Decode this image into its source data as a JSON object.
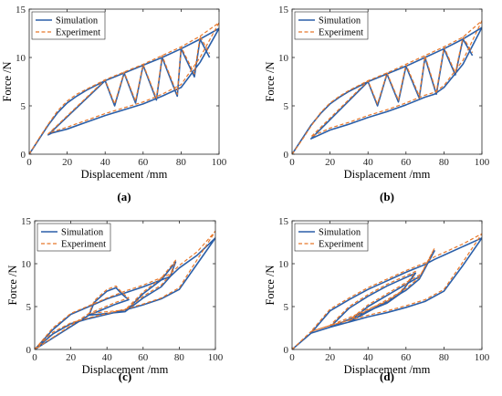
{
  "colors": {
    "simulation": "#2b5fa8",
    "experiment": "#e8782a",
    "axis": "#262626"
  },
  "chart_data": [
    {
      "type": "line",
      "panel_label": "(a)",
      "xlabel": "Displacement /mm",
      "ylabel": "Force /N",
      "xlim": [
        0,
        100
      ],
      "ylim": [
        0,
        15
      ],
      "xticks": [
        "0",
        "20",
        "40",
        "60",
        "80",
        "100"
      ],
      "yticks": [
        "0",
        "5",
        "10",
        "15"
      ],
      "legend": {
        "placement": "top-left",
        "entries": [
          "Simulation",
          "Experiment"
        ]
      },
      "series": [
        {
          "name": "Simulation",
          "style": "solid",
          "x": [
            0,
            5,
            10,
            15,
            20,
            25,
            30,
            40,
            50,
            60,
            70,
            80,
            90,
            100,
            90,
            80,
            70,
            60,
            50,
            40,
            30,
            20,
            12,
            10,
            40,
            45,
            50,
            56,
            60,
            67,
            70,
            78,
            80,
            87,
            90,
            95
          ],
          "y": [
            0,
            1.5,
            3,
            4.3,
            5.3,
            6.0,
            6.6,
            7.6,
            8.4,
            9.2,
            10.0,
            10.9,
            11.9,
            13,
            9.5,
            6.9,
            6.0,
            5.2,
            4.6,
            4.0,
            3.3,
            2.6,
            2.2,
            2.0,
            7.6,
            5.0,
            8.4,
            5.3,
            9.2,
            5.6,
            10.0,
            6.0,
            10.9,
            8.0,
            11.9,
            10.0
          ]
        },
        {
          "name": "Experiment",
          "style": "dashed",
          "x": [
            0,
            5,
            10,
            15,
            20,
            25,
            30,
            40,
            50,
            60,
            70,
            80,
            90,
            100,
            90,
            80,
            70,
            60,
            50,
            40,
            30,
            20,
            12,
            10,
            40,
            45,
            50,
            56,
            60,
            67,
            70,
            78,
            80,
            87,
            90,
            95
          ],
          "y": [
            0,
            1.6,
            3.1,
            4.5,
            5.5,
            6.2,
            6.7,
            7.7,
            8.5,
            9.3,
            10.2,
            11.1,
            12.2,
            13.6,
            10.0,
            7.2,
            6.2,
            5.4,
            4.8,
            4.2,
            3.5,
            2.8,
            2.3,
            2.1,
            7.7,
            5.2,
            8.5,
            5.5,
            9.3,
            5.8,
            10.2,
            6.2,
            11.1,
            8.3,
            12.2,
            10.4
          ]
        }
      ]
    },
    {
      "type": "line",
      "panel_label": "(b)",
      "xlabel": "Displacement /mm",
      "ylabel": "Force /N",
      "xlim": [
        0,
        100
      ],
      "ylim": [
        0,
        15
      ],
      "xticks": [
        "0",
        "20",
        "40",
        "60",
        "80",
        "100"
      ],
      "yticks": [
        "0",
        "5",
        "10",
        "15"
      ],
      "legend": {
        "placement": "top-left",
        "entries": [
          "Simulation",
          "Experiment"
        ]
      },
      "series": [
        {
          "name": "Simulation",
          "style": "solid",
          "x": [
            0,
            5,
            10,
            15,
            20,
            25,
            30,
            40,
            50,
            60,
            70,
            80,
            90,
            100,
            90,
            80,
            75,
            70,
            60,
            50,
            40,
            30,
            20,
            10,
            40,
            45,
            50,
            56,
            60,
            67,
            70,
            76,
            80,
            86,
            90,
            95
          ],
          "y": [
            0,
            1.5,
            3,
            4.2,
            5.2,
            5.9,
            6.5,
            7.5,
            8.3,
            9.1,
            10.0,
            10.9,
            11.9,
            13.1,
            9.3,
            6.9,
            6.2,
            5.9,
            5.1,
            4.4,
            3.8,
            3.1,
            2.5,
            1.6,
            7.5,
            5.0,
            8.3,
            5.4,
            9.1,
            5.8,
            10.0,
            6.2,
            10.9,
            8.2,
            11.9,
            10.2
          ]
        },
        {
          "name": "Experiment",
          "style": "dashed",
          "x": [
            0,
            5,
            10,
            15,
            20,
            25,
            30,
            40,
            50,
            60,
            70,
            80,
            90,
            100,
            90,
            80,
            75,
            70,
            60,
            50,
            40,
            30,
            20,
            10,
            40,
            45,
            50,
            56,
            60,
            67,
            70,
            76,
            80,
            86,
            90,
            95
          ],
          "y": [
            0,
            1.4,
            2.9,
            4.3,
            5.3,
            6.0,
            6.6,
            7.6,
            8.4,
            9.3,
            10.2,
            11.1,
            12.1,
            13.8,
            9.7,
            7.1,
            6.4,
            6.1,
            5.3,
            4.6,
            4.0,
            3.3,
            2.7,
            1.8,
            7.6,
            5.2,
            8.4,
            5.6,
            9.3,
            6.0,
            10.2,
            6.4,
            11.1,
            8.4,
            12.1,
            10.5
          ]
        }
      ]
    },
    {
      "type": "line",
      "panel_label": "(c)",
      "xlabel": "Displacement /mm",
      "ylabel": "Force /N",
      "xlim": [
        0,
        100
      ],
      "ylim": [
        0,
        15
      ],
      "xticks": [
        "0",
        "20",
        "40",
        "60",
        "80",
        "100"
      ],
      "yticks": [
        "0",
        "5",
        "10",
        "15"
      ],
      "legend": {
        "placement": "top-left",
        "entries": [
          "Simulation",
          "Experiment"
        ]
      },
      "series": [
        {
          "name": "Simulation",
          "style": "solid",
          "x": [
            0,
            10,
            20,
            30,
            40,
            50,
            60,
            70,
            80,
            90,
            100,
            90,
            80,
            75,
            60,
            50,
            40,
            30,
            20,
            10,
            0,
            30,
            33,
            40,
            45,
            48,
            52,
            45,
            37,
            30,
            50,
            60,
            70,
            78,
            75,
            70,
            60,
            55,
            50
          ],
          "y": [
            0,
            1.8,
            3.0,
            3.6,
            4.1,
            4.6,
            5.2,
            5.9,
            7.0,
            10.0,
            13.0,
            11.0,
            9.5,
            8.5,
            7.3,
            6.6,
            5.9,
            5.0,
            4.1,
            2.3,
            0,
            4.0,
            5.5,
            6.8,
            7.2,
            6.5,
            5.8,
            5.3,
            4.6,
            4.0,
            4.4,
            6.5,
            8.1,
            10.2,
            8.5,
            7.3,
            6.0,
            5.2,
            4.4
          ]
        },
        {
          "name": "Experiment",
          "style": "dashed",
          "x": [
            0,
            10,
            20,
            30,
            40,
            50,
            60,
            70,
            80,
            90,
            100,
            90,
            80,
            75,
            60,
            50,
            40,
            30,
            20,
            10,
            0,
            30,
            33,
            40,
            45,
            48,
            52,
            45,
            37,
            30,
            50,
            60,
            70,
            78,
            75,
            70,
            60,
            55,
            50
          ],
          "y": [
            0,
            2.0,
            3.1,
            3.7,
            4.2,
            4.7,
            5.3,
            6.0,
            7.2,
            10.5,
            13.8,
            11.4,
            9.8,
            8.8,
            7.5,
            6.8,
            6.0,
            5.1,
            4.2,
            2.5,
            0,
            4.2,
            5.7,
            7.0,
            7.4,
            6.7,
            6.0,
            5.5,
            4.8,
            4.2,
            4.6,
            6.7,
            8.3,
            10.4,
            8.7,
            7.5,
            6.2,
            5.4,
            4.6
          ]
        }
      ]
    },
    {
      "type": "line",
      "panel_label": "(d)",
      "xlabel": "Displacement /mm",
      "ylabel": "Force /N",
      "xlim": [
        0,
        100
      ],
      "ylim": [
        0,
        15
      ],
      "xticks": [
        "0",
        "20",
        "40",
        "60",
        "80",
        "100"
      ],
      "yticks": [
        "0",
        "5",
        "10",
        "15"
      ],
      "legend": {
        "placement": "top-left",
        "entries": [
          "Simulation",
          "Experiment"
        ]
      },
      "series": [
        {
          "name": "Simulation",
          "style": "solid",
          "x": [
            0,
            10,
            20,
            30,
            40,
            50,
            60,
            70,
            80,
            90,
            100,
            90,
            80,
            75,
            70,
            60,
            50,
            40,
            30,
            20,
            10,
            20,
            30,
            40,
            50,
            58,
            65,
            57,
            50,
            40,
            30,
            20,
            30,
            40,
            50,
            60,
            68,
            75,
            67,
            60,
            50,
            40,
            30
          ],
          "y": [
            0,
            1.9,
            2.6,
            3.2,
            3.8,
            4.3,
            4.9,
            5.6,
            6.8,
            9.8,
            13.0,
            12.0,
            11.0,
            10.5,
            9.9,
            9.0,
            8.0,
            7.0,
            5.8,
            4.5,
            1.9,
            2.6,
            4.8,
            6.2,
            7.4,
            8.2,
            8.9,
            6.5,
            5.4,
            4.5,
            3.5,
            2.6,
            3.2,
            5.0,
            6.3,
            7.6,
            8.6,
            11.5,
            8.2,
            6.9,
            5.6,
            4.4,
            3.2
          ]
        },
        {
          "name": "Experiment",
          "style": "dashed",
          "x": [
            0,
            10,
            20,
            30,
            40,
            50,
            60,
            70,
            80,
            90,
            100,
            90,
            80,
            75,
            70,
            60,
            50,
            40,
            30,
            20,
            10,
            20,
            30,
            40,
            50,
            58,
            65,
            57,
            50,
            40,
            30,
            20,
            30,
            40,
            50,
            60,
            68,
            75,
            67,
            60,
            50,
            40,
            30
          ],
          "y": [
            0,
            2.1,
            2.8,
            3.4,
            4.0,
            4.5,
            5.1,
            5.8,
            7.0,
            10.2,
            13.5,
            12.3,
            11.3,
            10.8,
            10.1,
            9.2,
            8.2,
            7.2,
            6.0,
            4.7,
            2.1,
            2.8,
            5.0,
            6.4,
            7.6,
            8.4,
            9.1,
            6.7,
            5.6,
            4.7,
            3.7,
            2.8,
            3.4,
            5.2,
            6.5,
            7.8,
            8.8,
            11.8,
            8.4,
            7.1,
            5.8,
            4.6,
            3.4
          ]
        }
      ]
    }
  ]
}
